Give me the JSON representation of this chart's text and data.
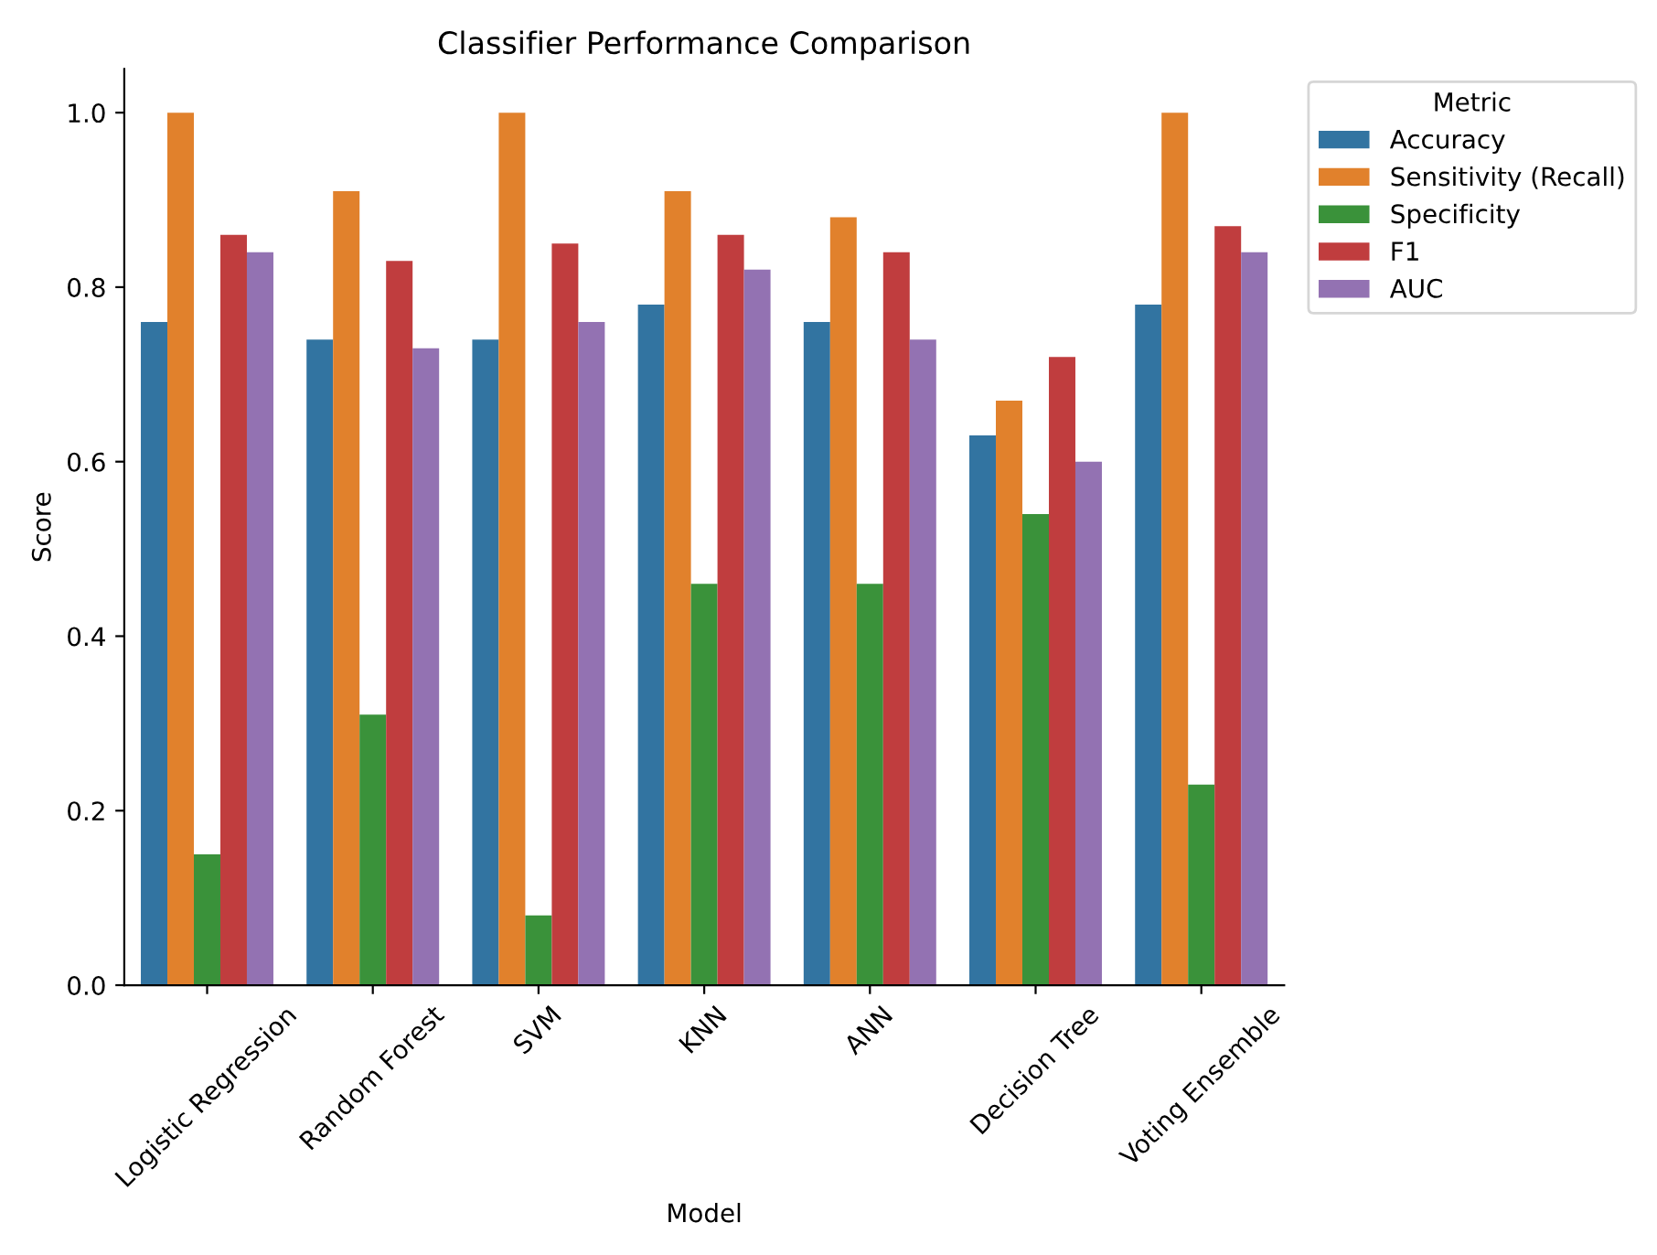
{
  "chart_data": {
    "type": "bar",
    "title": "Classifier Performance Comparison",
    "xlabel": "Model",
    "ylabel": "Score",
    "legend_title": "Metric",
    "legend": "top right",
    "grid": false,
    "categories": [
      "Logistic Regression",
      "Random Forest",
      "SVM",
      "KNN",
      "ANN",
      "Decision Tree",
      "Voting Ensemble"
    ],
    "ylim": [
      0,
      1.05
    ],
    "yticks": [
      {
        "value": 0,
        "label": "0.0"
      },
      {
        "value": 0.2,
        "label": "0.2"
      },
      {
        "value": 0.4,
        "label": "0.4"
      },
      {
        "value": 0.6,
        "label": "0.6"
      },
      {
        "value": 0.8,
        "label": "0.8"
      },
      {
        "value": 1.0,
        "label": "1.0"
      }
    ],
    "series": [
      {
        "name": "Accuracy",
        "color": "#3274a1",
        "values": [
          0.76,
          0.74,
          0.74,
          0.78,
          0.76,
          0.63,
          0.78
        ]
      },
      {
        "name": "Sensitivity (Recall)",
        "color": "#e1812c",
        "values": [
          1.0,
          0.91,
          1.0,
          0.91,
          0.88,
          0.67,
          1.0
        ]
      },
      {
        "name": "Specificity",
        "color": "#3a923a",
        "values": [
          0.15,
          0.31,
          0.08,
          0.46,
          0.46,
          0.54,
          0.23
        ]
      },
      {
        "name": "F1",
        "color": "#c03d3e",
        "values": [
          0.86,
          0.83,
          0.85,
          0.86,
          0.84,
          0.72,
          0.87
        ]
      },
      {
        "name": "AUC",
        "color": "#9372b2",
        "values": [
          0.84,
          0.73,
          0.76,
          0.82,
          0.74,
          0.6,
          0.84
        ]
      }
    ]
  }
}
